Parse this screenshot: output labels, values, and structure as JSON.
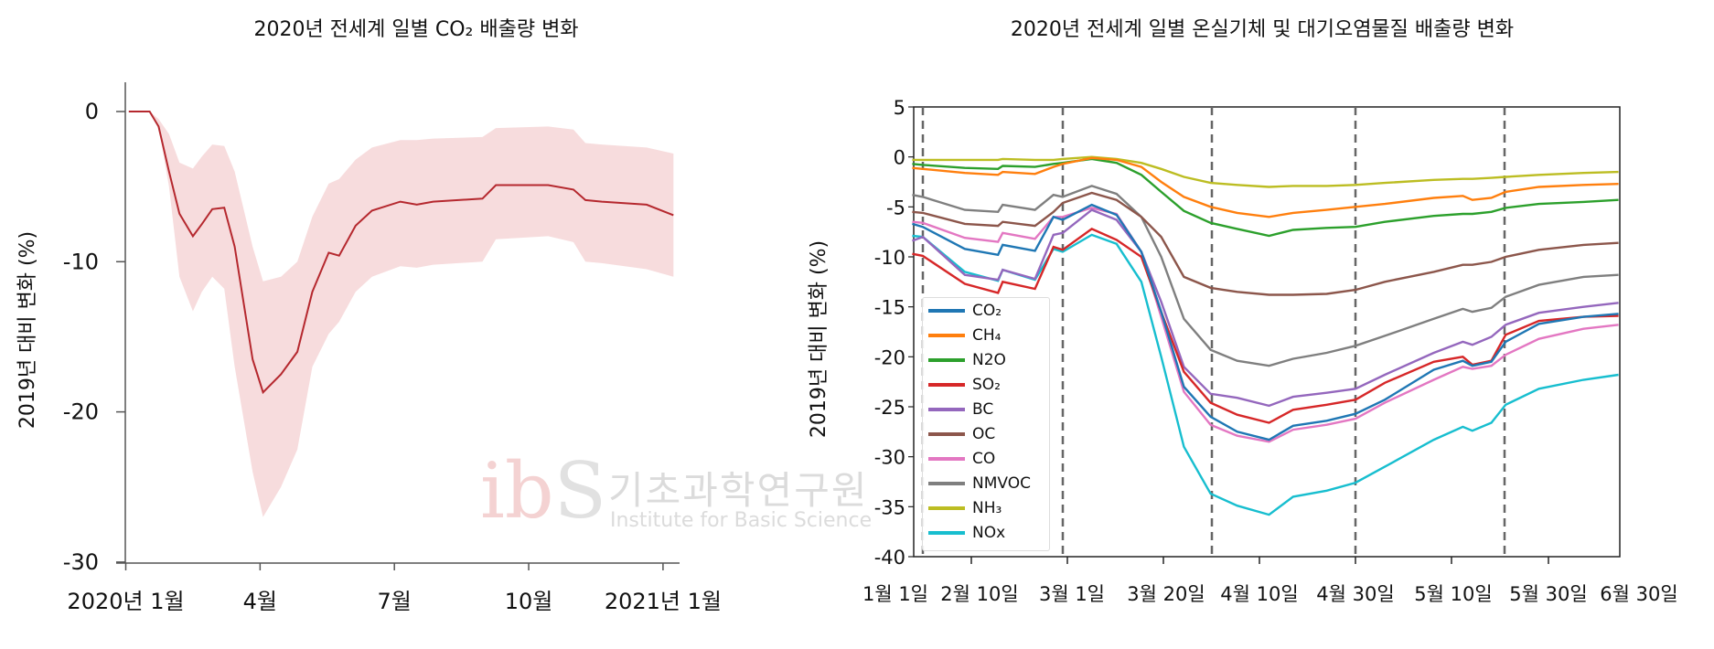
{
  "chart_data": [
    {
      "type": "line",
      "title": "2020년 전세계 일별 CO₂ 배출량 변화",
      "ylabel": "2019년 대비 변화 (%)",
      "xlabel": "",
      "ylim": [
        -30,
        2
      ],
      "yticks": [
        "0",
        "-10",
        "-20",
        "-30"
      ],
      "ytick_values": [
        0,
        -10,
        -20,
        -30
      ],
      "xticks": [
        "2020년 1월",
        "4월",
        "7월",
        "10월",
        "2021년 1월"
      ],
      "xtick_values": [
        "2020-01-01",
        "2020-04-01",
        "2020-07-01",
        "2020-10-01",
        "2021-01-01"
      ],
      "grid": false,
      "line_color": "#b5282e",
      "band_color": "#f7dcdd",
      "x": [
        "2020-01-03",
        "2020-01-17",
        "2020-01-23",
        "2020-01-30",
        "2020-02-07",
        "2020-02-16",
        "2020-02-22",
        "2020-02-29",
        "2020-03-07",
        "2020-03-14",
        "2020-03-26",
        "2020-04-03",
        "2020-04-15",
        "2020-04-26",
        "2020-05-06",
        "2020-05-17",
        "2020-05-24",
        "2020-06-05",
        "2020-06-16",
        "2020-07-05",
        "2020-07-16",
        "2020-07-27",
        "2020-08-30",
        "2020-09-09",
        "2020-10-14",
        "2020-10-31",
        "2020-11-09",
        "2020-11-20",
        "2020-12-20",
        "2021-01-08"
      ],
      "values": [
        0,
        0,
        -1,
        -4,
        -6.8,
        -8.3,
        -7.5,
        -6.5,
        -6.4,
        -9,
        -16.5,
        -18.7,
        -17.5,
        -16,
        -12,
        -9.4,
        -9.6,
        -7.6,
        -6.6,
        -6,
        -6.2,
        -6,
        -5.8,
        -4.9,
        -4.9,
        -5.2,
        -5.9,
        -6,
        -6.2,
        -6.9
      ],
      "upper": [
        0,
        0,
        -0.5,
        -1.5,
        -3.4,
        -3.8,
        -3,
        -2.2,
        -2.3,
        -4,
        -9,
        -11.3,
        -11,
        -10,
        -7,
        -4.8,
        -4.5,
        -3.2,
        -2.4,
        -1.9,
        -1.9,
        -1.8,
        -1.7,
        -1.1,
        -1,
        -1.2,
        -2.1,
        -2.2,
        -2.4,
        -2.8
      ],
      "lower": [
        0,
        0,
        -1,
        -5,
        -11,
        -13.3,
        -12,
        -11,
        -11.8,
        -17,
        -24,
        -27,
        -25,
        -22.5,
        -17,
        -14.8,
        -14,
        -12,
        -11,
        -10.3,
        -10.4,
        -10.2,
        -10,
        -8.5,
        -8.3,
        -8.7,
        -10,
        -10.1,
        -10.5,
        -11
      ]
    },
    {
      "type": "line",
      "title": "2020년 전세계 일별 온실기체 및 대기오염물질 배출량 변화",
      "ylabel": "2019년 대비 변화 (%)",
      "xlabel": "",
      "ylim": [
        -40,
        5
      ],
      "yticks": [
        "5",
        "0",
        "-5",
        "-10",
        "-15",
        "-20",
        "-25",
        "-30",
        "-35",
        "-40"
      ],
      "ytick_values": [
        5,
        0,
        -5,
        -10,
        -15,
        -20,
        -25,
        -30,
        -35,
        -40
      ],
      "xticks": [
        "1월 1일",
        "2월 10일",
        "3월 1일",
        "3월 20일",
        "4월 10일",
        "4월 30일",
        "5월 10일",
        "5월 30일",
        "6월 30일"
      ],
      "grid": false,
      "legend_position": "bottom-left",
      "x": [
        "01-09",
        "01-14",
        "02-03",
        "02-14",
        "02-15",
        "02-22",
        "02-26",
        "02-28",
        "03-05",
        "03-10",
        "03-15",
        "03-19",
        "03-24",
        "03-30",
        "04-05",
        "04-12",
        "04-17",
        "04-24",
        "04-30",
        "05-03",
        "05-08",
        "05-12",
        "05-14",
        "05-18",
        "05-21",
        "05-28",
        "06-11",
        "06-23"
      ],
      "series": [
        {
          "name": "CO₂",
          "color": "#1f77b4",
          "values": [
            -6.7,
            -7,
            -9.2,
            -9.8,
            -8.8,
            -9.4,
            -6,
            -6.3,
            -4.8,
            -5.8,
            -9.5,
            -15.5,
            -23,
            -26,
            -27.5,
            -28.3,
            -26.9,
            -26.4,
            -25.7,
            -24.3,
            -21.3,
            -20.4,
            -20.9,
            -20.5,
            -18.5,
            -16.7,
            -16,
            -15.7
          ]
        },
        {
          "name": "CH₄",
          "color": "#ff7f0e",
          "values": [
            -1.1,
            -1.2,
            -1.6,
            -1.8,
            -1.5,
            -1.7,
            -1,
            -0.7,
            -0.1,
            -0.3,
            -1,
            -2.5,
            -4,
            -5,
            -5.6,
            -6,
            -5.6,
            -5.3,
            -5,
            -4.7,
            -4.1,
            -3.9,
            -4.3,
            -4.1,
            -3.5,
            -3,
            -2.8,
            -2.7
          ]
        },
        {
          "name": "N2O",
          "color": "#2ca02c",
          "values": [
            -0.7,
            -0.8,
            -1.1,
            -1.2,
            -0.9,
            -1,
            -0.7,
            -0.6,
            -0.2,
            -0.6,
            -1.8,
            -3.5,
            -5.4,
            -6.6,
            -7.2,
            -7.9,
            -7.3,
            -7.1,
            -7,
            -6.5,
            -5.9,
            -5.7,
            -5.7,
            -5.5,
            -5.1,
            -4.7,
            -4.5,
            -4.3
          ]
        },
        {
          "name": "SO₂",
          "color": "#d62728",
          "values": [
            -9.7,
            -9.9,
            -12.7,
            -13.6,
            -12.5,
            -13.2,
            -9,
            -9.3,
            -7.2,
            -8.3,
            -10,
            -15.5,
            -21.5,
            -24.6,
            -25.8,
            -26.6,
            -25.3,
            -24.8,
            -24.3,
            -22.6,
            -20.5,
            -20,
            -20.8,
            -20.4,
            -17.8,
            -16.4,
            -16,
            -15.9
          ]
        },
        {
          "name": "BC",
          "color": "#9467bd",
          "values": [
            -8.4,
            -8,
            -11.8,
            -12.3,
            -11.3,
            -12.2,
            -7.8,
            -7.6,
            -5.3,
            -6.3,
            -9.5,
            -14.5,
            -21,
            -23.7,
            -24.1,
            -24.9,
            -24,
            -23.6,
            -23.2,
            -21.8,
            -19.6,
            -18.5,
            -18.8,
            -18,
            -16.8,
            -15.6,
            -15,
            -14.6
          ]
        },
        {
          "name": "OC",
          "color": "#8c564b",
          "values": [
            -5.5,
            -5.6,
            -6.7,
            -6.9,
            -6.5,
            -6.9,
            -5.5,
            -4.6,
            -3.6,
            -4.3,
            -6,
            -8,
            -12,
            -13.1,
            -13.5,
            -13.8,
            -13.8,
            -13.7,
            -13.3,
            -12.5,
            -11.5,
            -10.8,
            -10.8,
            -10.5,
            -10,
            -9.3,
            -8.8,
            -8.6
          ]
        },
        {
          "name": "CO",
          "color": "#e377c2",
          "values": [
            -6.5,
            -6.6,
            -8.1,
            -8.5,
            -7.6,
            -8.2,
            -6,
            -6,
            -5.1,
            -5.7,
            -9.5,
            -16,
            -23.5,
            -26.8,
            -27.9,
            -28.5,
            -27.3,
            -26.8,
            -26.2,
            -24.6,
            -22.3,
            -21,
            -21.2,
            -20.9,
            -19.8,
            -18.2,
            -17.2,
            -16.8
          ]
        },
        {
          "name": "NMVOC",
          "color": "#7f7f7f",
          "values": [
            -3.8,
            -4,
            -5.3,
            -5.5,
            -4.8,
            -5.3,
            -3.8,
            -4,
            -2.9,
            -3.7,
            -6,
            -10,
            -16.2,
            -19.3,
            -20.4,
            -20.9,
            -20.2,
            -19.6,
            -18.9,
            -17.9,
            -16.2,
            -15.2,
            -15.5,
            -15.1,
            -14,
            -12.8,
            -12,
            -11.8
          ]
        },
        {
          "name": "NH₃",
          "color": "#bcbd22",
          "values": [
            -0.3,
            -0.3,
            -0.3,
            -0.3,
            -0.2,
            -0.3,
            -0.3,
            -0.2,
            0,
            -0.2,
            -0.6,
            -1.2,
            -2,
            -2.6,
            -2.8,
            -3,
            -2.9,
            -2.9,
            -2.8,
            -2.6,
            -2.3,
            -2.2,
            -2.2,
            -2.1,
            -2,
            -1.8,
            -1.6,
            -1.5
          ]
        },
        {
          "name": "NOx",
          "color": "#17becf",
          "values": [
            -7.9,
            -8,
            -11.5,
            -12.4,
            -11.3,
            -12.3,
            -9.2,
            -9.5,
            -7.8,
            -8.7,
            -12.5,
            -20,
            -29,
            -33.7,
            -34.9,
            -35.8,
            -34,
            -33.4,
            -32.6,
            -31,
            -28.3,
            -27,
            -27.4,
            -26.6,
            -24.8,
            -23.2,
            -22.3,
            -21.8
          ]
        }
      ]
    }
  ],
  "watermark": {
    "logo": "ibs",
    "korean": "기초과학연구원",
    "english": "Institute for Basic Science"
  }
}
